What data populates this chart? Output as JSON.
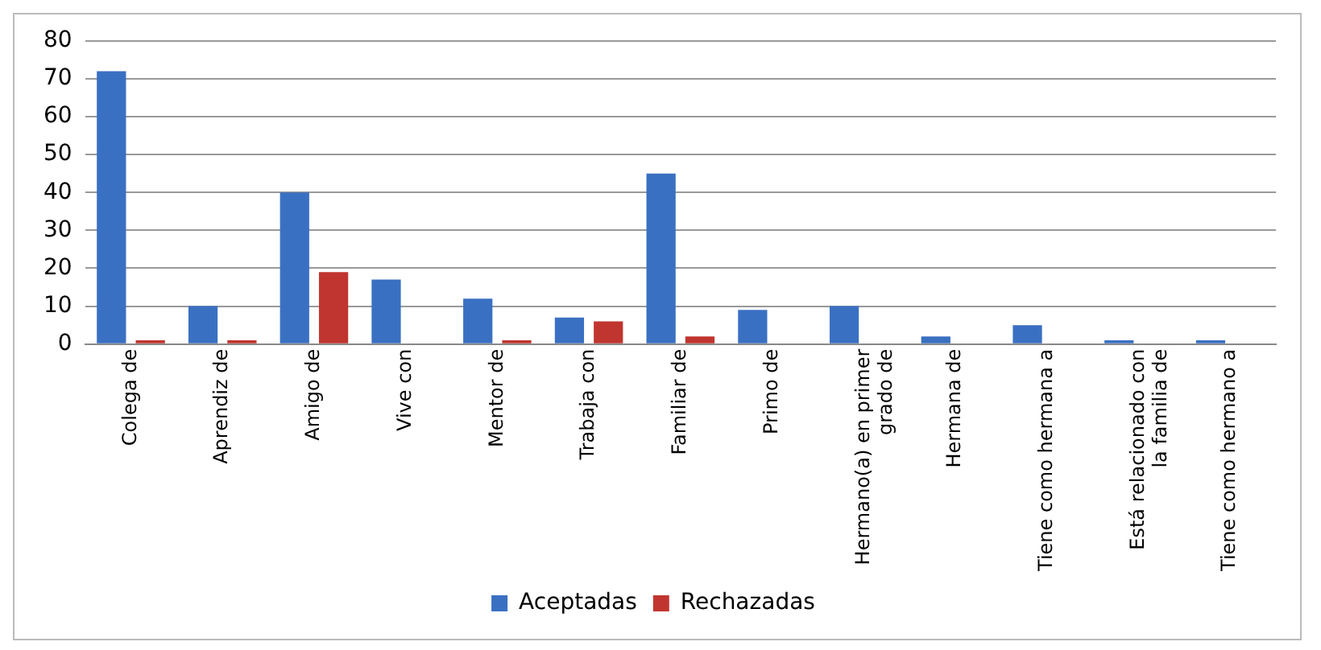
{
  "chart_data": {
    "type": "bar",
    "categories": [
      "Colega de",
      "Aprendiz de",
      "Amigo de",
      "Vive con",
      "Mentor de",
      "Trabaja con",
      "Familiar de",
      "Primo de",
      "Hermano(a) en primer grado de",
      "Hermana de",
      "Tiene como hermana a",
      "Está relacionado con la familia de",
      "Tiene como hermano a"
    ],
    "series": [
      {
        "name": "Aceptadas",
        "color": "#3a70c2",
        "values": [
          72,
          10,
          40,
          17,
          12,
          7,
          45,
          9,
          10,
          2,
          5,
          1,
          1
        ]
      },
      {
        "name": "Rechazadas",
        "color": "#c0352f",
        "values": [
          1,
          1,
          19,
          0,
          1,
          6,
          2,
          0,
          0,
          0,
          0,
          0,
          0
        ]
      }
    ],
    "ylim": [
      0,
      80
    ],
    "yticks": [
      0,
      10,
      20,
      30,
      40,
      50,
      60,
      70,
      80
    ],
    "grid": "y",
    "legend": "bottom"
  }
}
